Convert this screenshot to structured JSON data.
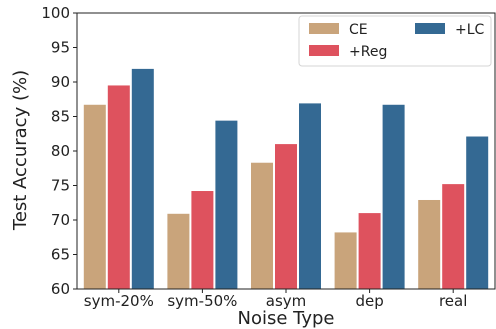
{
  "chart_data": {
    "type": "bar",
    "xlabel": "Noise Type",
    "ylabel": "Test Accuracy (%)",
    "ylim": [
      60,
      100
    ],
    "yticks": [
      60,
      65,
      70,
      75,
      80,
      85,
      90,
      95,
      100
    ],
    "grid": false,
    "legend_position": "top-right",
    "categories": [
      "sym-20%",
      "sym-50%",
      "asym",
      "dep",
      "real"
    ],
    "series": [
      {
        "name": "CE",
        "color": "#c9a47b",
        "values": [
          86.7,
          70.9,
          78.3,
          68.2,
          72.9
        ]
      },
      {
        "name": "+Reg",
        "color": "#de525e",
        "values": [
          89.5,
          74.2,
          81.0,
          71.0,
          75.2
        ]
      },
      {
        "name": "+LC",
        "color": "#346993",
        "values": [
          91.9,
          84.4,
          86.9,
          86.7,
          82.1
        ]
      }
    ]
  }
}
